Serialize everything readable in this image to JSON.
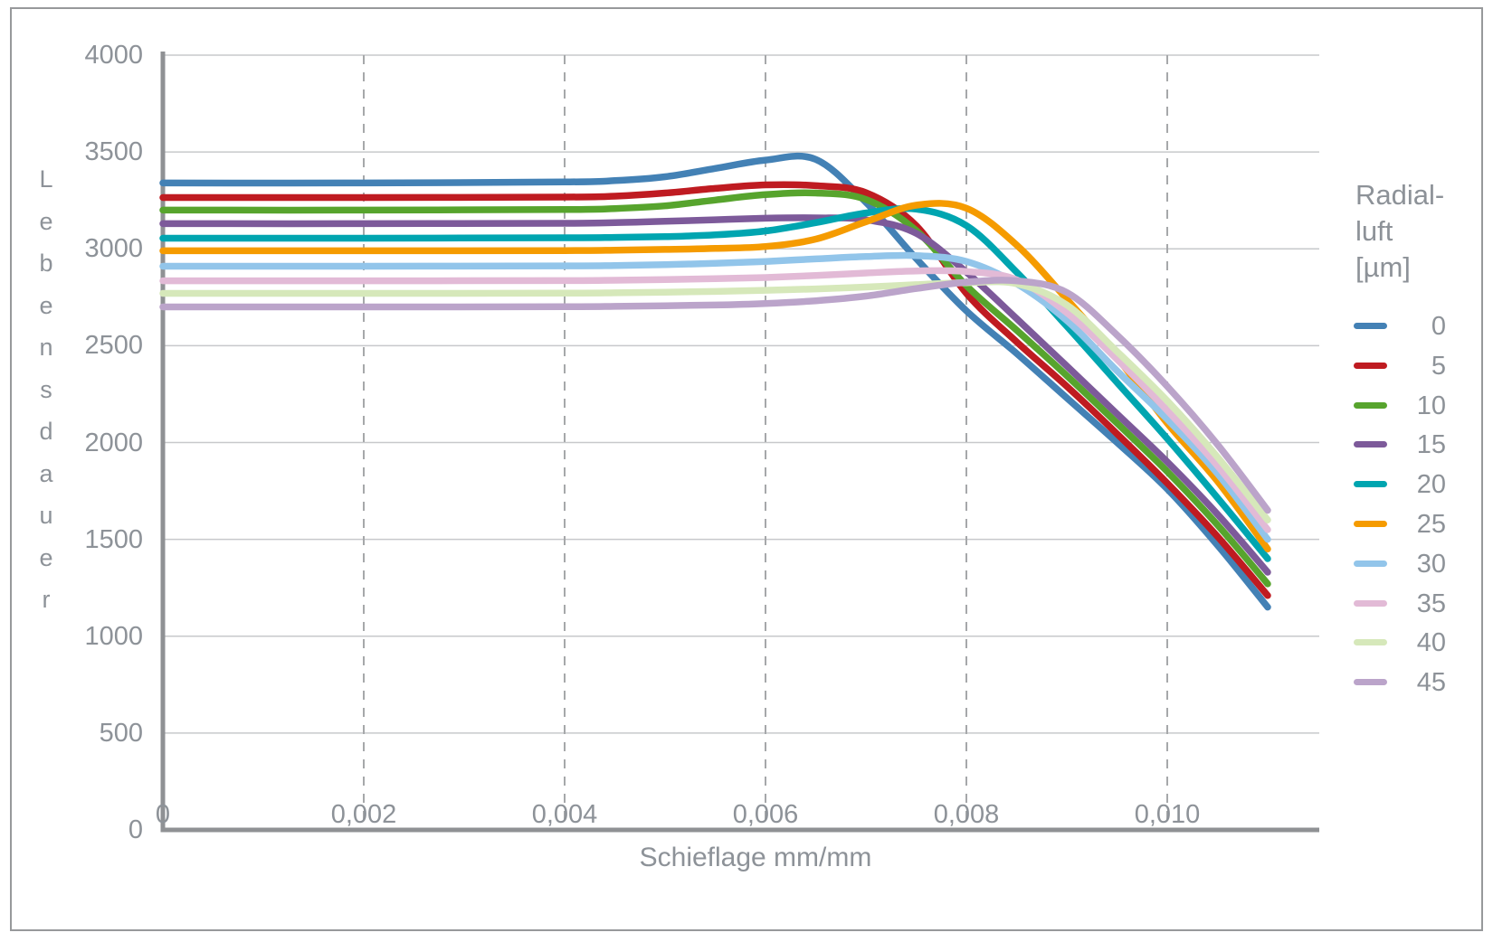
{
  "chart_data": {
    "type": "line",
    "title": "",
    "xlabel": "Schieflage mm/mm",
    "ylabel": "Lebensdauer",
    "xlim": [
      0,
      0.0115
    ],
    "ylim": [
      0,
      4000
    ],
    "x_tick_values": [
      0,
      0.002,
      0.004,
      0.006,
      0.008,
      0.01
    ],
    "x_tick_labels": [
      "0",
      "0,002",
      "0,004",
      "0,006",
      "0,008",
      "0,010"
    ],
    "y_tick_values": [
      0,
      500,
      1000,
      1500,
      2000,
      2500,
      3000,
      3500,
      4000
    ],
    "y_tick_labels": [
      "0",
      "500",
      "1000",
      "1500",
      "2000",
      "2500",
      "3000",
      "3500",
      "4000"
    ],
    "grid": {
      "horizontal": "solid",
      "vertical": "dashed"
    },
    "legend_position": "right",
    "legend": {
      "title_lines": [
        "Radial-",
        "luft",
        "[µm]"
      ]
    },
    "x": [
      0,
      0.002,
      0.004,
      0.0045,
      0.005,
      0.0055,
      0.006,
      0.0065,
      0.007,
      0.0075,
      0.008,
      0.0085,
      0.009,
      0.0095,
      0.01,
      0.0105,
      0.011
    ],
    "series": [
      {
        "name": "0",
        "color": "#4381b5",
        "values": [
          3340,
          3340,
          3345,
          3352,
          3372,
          3415,
          3458,
          3462,
          3240,
          2950,
          2680,
          2460,
          2230,
          2000,
          1760,
          1470,
          1150
        ]
      },
      {
        "name": "5",
        "color": "#bf1b21",
        "values": [
          3265,
          3265,
          3267,
          3272,
          3288,
          3312,
          3330,
          3326,
          3290,
          3120,
          2770,
          2520,
          2290,
          2045,
          1790,
          1515,
          1210
        ]
      },
      {
        "name": "10",
        "color": "#57a42d",
        "values": [
          3200,
          3200,
          3203,
          3208,
          3222,
          3252,
          3280,
          3288,
          3255,
          3095,
          2810,
          2580,
          2345,
          2100,
          1850,
          1575,
          1270
        ]
      },
      {
        "name": "15",
        "color": "#7d5a9a",
        "values": [
          3130,
          3130,
          3132,
          3135,
          3142,
          3150,
          3158,
          3160,
          3150,
          3080,
          2880,
          2640,
          2395,
          2148,
          1900,
          1630,
          1330
        ]
      },
      {
        "name": "20",
        "color": "#00a5b0",
        "values": [
          3055,
          3055,
          3057,
          3059,
          3063,
          3072,
          3092,
          3135,
          3185,
          3205,
          3120,
          2880,
          2600,
          2310,
          2020,
          1715,
          1400
        ]
      },
      {
        "name": "25",
        "color": "#f59b00",
        "values": [
          2990,
          2990,
          2991,
          2993,
          2997,
          3002,
          3012,
          3050,
          3140,
          3225,
          3210,
          3020,
          2740,
          2440,
          2100,
          1800,
          1450
        ]
      },
      {
        "name": "30",
        "color": "#92c5ea",
        "values": [
          2910,
          2910,
          2912,
          2914,
          2918,
          2925,
          2935,
          2948,
          2960,
          2965,
          2935,
          2820,
          2630,
          2370,
          2120,
          1840,
          1500
        ]
      },
      {
        "name": "35",
        "color": "#e2bad6",
        "values": [
          2835,
          2835,
          2836,
          2838,
          2841,
          2846,
          2852,
          2862,
          2875,
          2886,
          2883,
          2840,
          2670,
          2430,
          2165,
          1880,
          1550
        ]
      },
      {
        "name": "40",
        "color": "#d6e8ba",
        "values": [
          2770,
          2770,
          2771,
          2773,
          2776,
          2780,
          2786,
          2793,
          2803,
          2815,
          2825,
          2820,
          2710,
          2470,
          2215,
          1925,
          1600
        ]
      },
      {
        "name": "45",
        "color": "#bba4ca",
        "values": [
          2700,
          2700,
          2701,
          2703,
          2706,
          2710,
          2718,
          2732,
          2756,
          2795,
          2828,
          2835,
          2775,
          2555,
          2290,
          1990,
          1650
        ]
      }
    ],
    "style": {
      "axis_color": "#8f9194",
      "grid_color_horizontal": "#c7c9cb",
      "grid_color_vertical": "#a6a8aa",
      "text_color": "#8d9298",
      "frame_color": "#97999b"
    }
  }
}
